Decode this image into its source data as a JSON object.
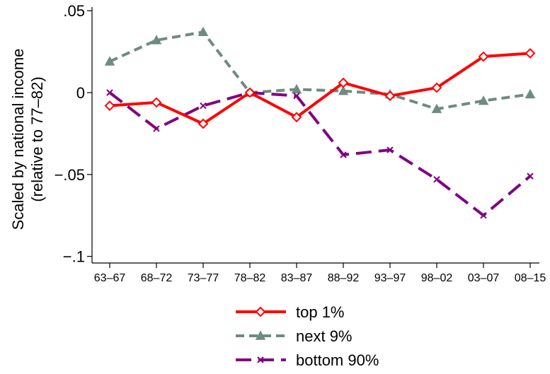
{
  "chart_data": {
    "type": "line",
    "title": "",
    "xlabel": "",
    "ylabel": "Scaled by national income",
    "ylabel_line2": "(relative to 77–82)",
    "categories": [
      "63–67",
      "68–72",
      "73–77",
      "78–82",
      "83–87",
      "88–92",
      "93–97",
      "98–02",
      "03–07",
      "08–15"
    ],
    "ylim": [
      -0.1,
      0.05
    ],
    "yticks": [
      0.05,
      0,
      -0.05,
      -0.1
    ],
    "ytick_labels": [
      ".05",
      "0",
      "−.05",
      "−.1"
    ],
    "grid": false,
    "legend_position": "bottom",
    "series": [
      {
        "name": "top 1%",
        "color": "#ff0000",
        "dash": "solid",
        "marker": "diamond",
        "values": [
          -0.008,
          -0.006,
          -0.019,
          0.0,
          -0.015,
          0.006,
          -0.002,
          0.003,
          0.022,
          0.024
        ]
      },
      {
        "name": "next 9%",
        "color": "#6e8b80",
        "dash": "dash",
        "marker": "triangle",
        "values": [
          0.019,
          0.032,
          0.037,
          0.0,
          0.002,
          0.001,
          -0.001,
          -0.01,
          -0.005,
          -0.001
        ]
      },
      {
        "name": "bottom 90%",
        "color": "#800080",
        "dash": "longdash",
        "marker": "x",
        "values": [
          0.0,
          -0.022,
          -0.008,
          0.0,
          -0.002,
          -0.038,
          -0.035,
          -0.053,
          -0.075,
          -0.051
        ]
      }
    ]
  }
}
